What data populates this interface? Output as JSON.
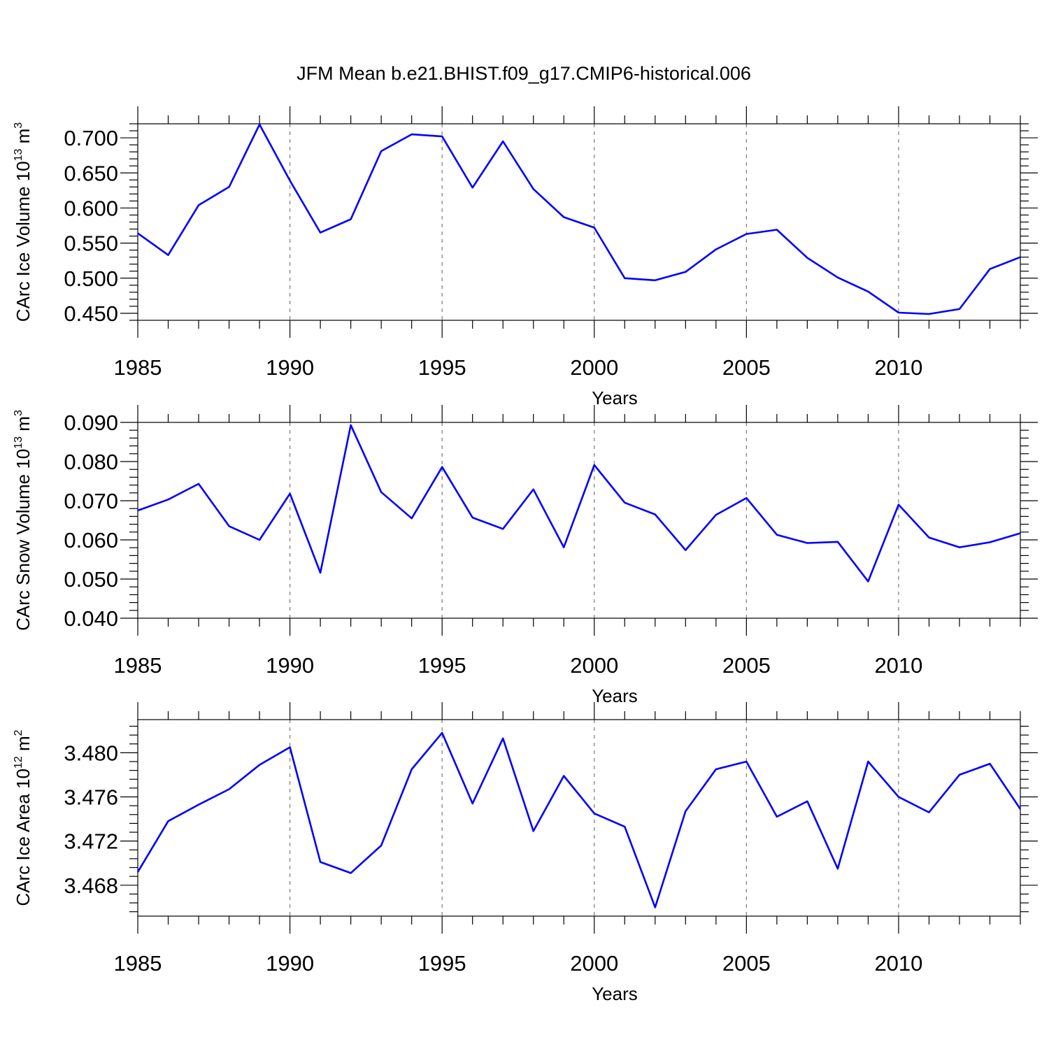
{
  "title": "JFM Mean b.e21.BHIST.f09_g17.CMIP6-historical.006",
  "chart_data": [
    {
      "type": "line",
      "ylabel": {
        "main": "CArc Ice Volume 10",
        "exp": "13",
        "unit": " m",
        "unit_exp": "3"
      },
      "xlabel": "Years",
      "xlim": [
        1985,
        2014
      ],
      "ylim": [
        0.44,
        0.72
      ],
      "xticks": [
        1985,
        1990,
        1995,
        2000,
        2005,
        2010
      ],
      "xtick_labels": [
        "1985",
        "1990",
        "1995",
        "2000",
        "2005",
        "2010"
      ],
      "yticks": [
        0.45,
        0.5,
        0.55,
        0.6,
        0.65,
        0.7
      ],
      "ytick_labels": [
        "0.450",
        "0.500",
        "0.550",
        "0.600",
        "0.650",
        "0.700"
      ],
      "grid": "vertical dashed at major x ticks",
      "line_color": "#0000ff",
      "x": [
        1985,
        1986,
        1987,
        1988,
        1989,
        1990,
        1991,
        1992,
        1993,
        1994,
        1995,
        1996,
        1997,
        1998,
        1999,
        2000,
        2001,
        2002,
        2003,
        2004,
        2005,
        2006,
        2007,
        2008,
        2009,
        2010,
        2011,
        2012,
        2013,
        2014
      ],
      "y": [
        0.564,
        0.533,
        0.604,
        0.63,
        0.719,
        0.639,
        0.565,
        0.584,
        0.681,
        0.705,
        0.702,
        0.629,
        0.695,
        0.627,
        0.587,
        0.572,
        0.5,
        0.497,
        0.509,
        0.541,
        0.563,
        0.569,
        0.529,
        0.501,
        0.481,
        0.451,
        0.449,
        0.456,
        0.513,
        0.53
      ]
    },
    {
      "type": "line",
      "ylabel": {
        "main": "CArc Snow Volume 10",
        "exp": "13",
        "unit": " m",
        "unit_exp": "3"
      },
      "xlabel": "Years",
      "xlim": [
        1985,
        2014
      ],
      "ylim": [
        0.04,
        0.09
      ],
      "xticks": [
        1985,
        1990,
        1995,
        2000,
        2005,
        2010
      ],
      "xtick_labels": [
        "1985",
        "1990",
        "1995",
        "2000",
        "2005",
        "2010"
      ],
      "yticks": [
        0.04,
        0.05,
        0.06,
        0.07,
        0.08,
        0.09
      ],
      "ytick_labels": [
        "0.040",
        "0.050",
        "0.060",
        "0.070",
        "0.080",
        "0.090"
      ],
      "grid": "vertical dashed at major x ticks",
      "line_color": "#0000ff",
      "x": [
        1985,
        1986,
        1987,
        1988,
        1989,
        1990,
        1991,
        1992,
        1993,
        1994,
        1995,
        1996,
        1997,
        1998,
        1999,
        2000,
        2001,
        2002,
        2003,
        2004,
        2005,
        2006,
        2007,
        2008,
        2009,
        2010,
        2011,
        2012,
        2013,
        2014
      ],
      "y": [
        0.0675,
        0.0703,
        0.0743,
        0.0635,
        0.06,
        0.0718,
        0.0516,
        0.0893,
        0.0722,
        0.0655,
        0.0786,
        0.0657,
        0.0628,
        0.0729,
        0.0581,
        0.0791,
        0.0695,
        0.0665,
        0.0574,
        0.0664,
        0.0707,
        0.0613,
        0.0592,
        0.0595,
        0.0494,
        0.069,
        0.0606,
        0.0581,
        0.0594,
        0.0617
      ]
    },
    {
      "type": "line",
      "ylabel": {
        "main": "CArc Ice Area 10",
        "exp": "12",
        "unit": " m",
        "unit_exp": "2"
      },
      "xlabel": "Years",
      "xlim": [
        1985,
        2014
      ],
      "ylim": [
        3.4652,
        3.483
      ],
      "xticks": [
        1985,
        1990,
        1995,
        2000,
        2005,
        2010
      ],
      "xtick_labels": [
        "1985",
        "1990",
        "1995",
        "2000",
        "2005",
        "2010"
      ],
      "yticks": [
        3.468,
        3.472,
        3.476,
        3.48
      ],
      "ytick_labels": [
        "3.468",
        "3.472",
        "3.476",
        "3.480"
      ],
      "grid": "vertical dashed at major x ticks",
      "line_color": "#0000ff",
      "x": [
        1985,
        1986,
        1987,
        1988,
        1989,
        1990,
        1991,
        1992,
        1993,
        1994,
        1995,
        1996,
        1997,
        1998,
        1999,
        2000,
        2001,
        2002,
        2003,
        2004,
        2005,
        2006,
        2007,
        2008,
        2009,
        2010,
        2011,
        2012,
        2013,
        2014
      ],
      "y": [
        3.4692,
        3.4738,
        3.4753,
        3.4767,
        3.4789,
        3.4805,
        3.4701,
        3.4691,
        3.4716,
        3.4785,
        3.4818,
        3.4754,
        3.4813,
        3.4729,
        3.4779,
        3.4745,
        3.4733,
        3.466,
        3.4747,
        3.4785,
        3.4792,
        3.4742,
        3.4756,
        3.4695,
        3.4792,
        3.476,
        3.4746,
        3.478,
        3.479,
        3.4749
      ]
    }
  ]
}
